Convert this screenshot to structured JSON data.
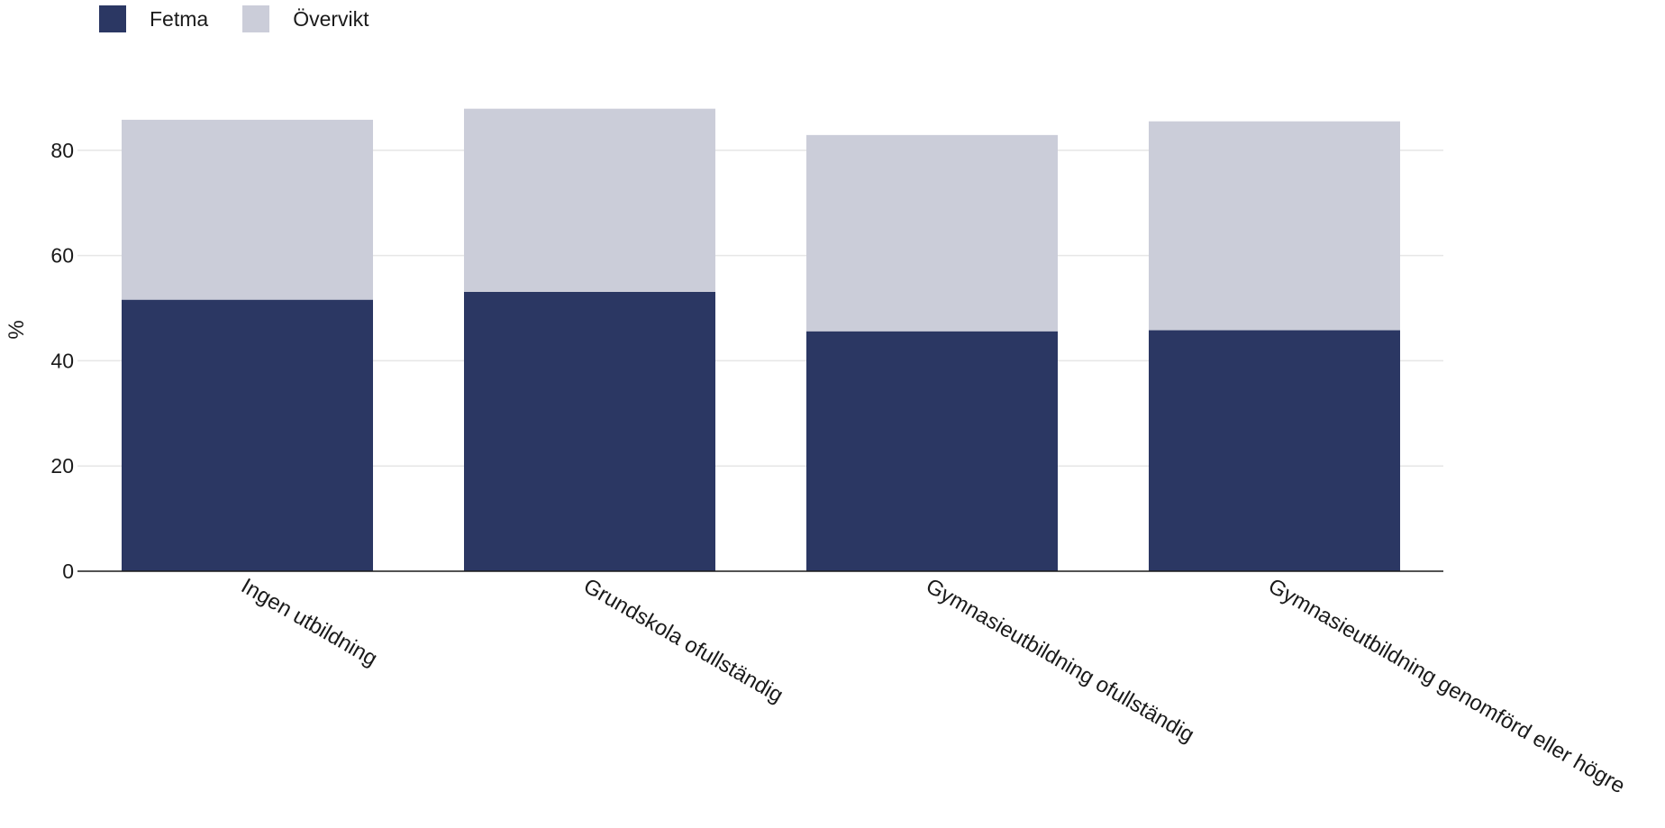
{
  "chart_data": {
    "type": "bar",
    "stacked": true,
    "categories": [
      "Ingen utbildning",
      "Grundskola ofullständig",
      "Gymnasieutbildning ofullständig",
      "Gymnasieutbildning genomförd eller högre"
    ],
    "series": [
      {
        "name": "Fetma",
        "color": "#2b3763",
        "values": [
          51.6,
          53.1,
          45.6,
          45.8
        ]
      },
      {
        "name": "Övervikt",
        "color": "#cbcdd9",
        "values": [
          34.2,
          34.8,
          37.3,
          39.7
        ]
      }
    ],
    "ylabel": "%",
    "ylim": [
      0,
      90
    ],
    "yticks": [
      0,
      20,
      40,
      60,
      80
    ],
    "grid": true,
    "legend_position": "top-left"
  }
}
